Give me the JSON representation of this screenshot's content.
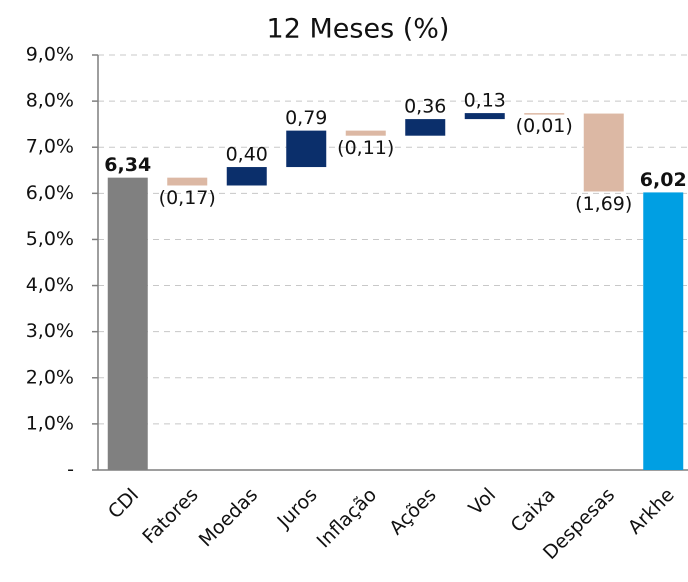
{
  "chart_data": {
    "type": "waterfall",
    "title": "12 Meses (%)",
    "categories": [
      "CDI",
      "Fatores",
      "Moedas",
      "Juros",
      "Inflação",
      "Ações",
      "Vol",
      "Caixa",
      "Despesas",
      "Arkhe"
    ],
    "values": [
      6.34,
      -0.17,
      0.4,
      0.79,
      -0.11,
      0.36,
      0.13,
      -0.01,
      -1.69,
      6.02
    ],
    "value_labels": [
      "6,34",
      "(0,17)",
      "0,40",
      "0,79",
      "(0,11)",
      "0,36",
      "0,13",
      "(0,01)",
      "(1,69)",
      "6,02"
    ],
    "is_total": [
      true,
      false,
      false,
      false,
      false,
      false,
      false,
      false,
      false,
      true
    ],
    "colors": [
      "#808080",
      "#dcb8a4",
      "#0b2f6b",
      "#0b2f6b",
      "#dcb8a4",
      "#0b2f6b",
      "#0b2f6b",
      "#dcb8a4",
      "#dcb8a4",
      "#009fe3"
    ],
    "ylim": [
      0,
      9
    ],
    "yticks": [
      {
        "value": 0,
        "label": "-"
      },
      {
        "value": 1,
        "label": "1,0%"
      },
      {
        "value": 2,
        "label": "2,0%"
      },
      {
        "value": 3,
        "label": "3,0%"
      },
      {
        "value": 4,
        "label": "4,0%"
      },
      {
        "value": 5,
        "label": "5,0%"
      },
      {
        "value": 6,
        "label": "6,0%"
      },
      {
        "value": 7,
        "label": "7,0%"
      },
      {
        "value": 8,
        "label": "8,0%"
      },
      {
        "value": 9,
        "label": "9,0%"
      }
    ],
    "grid": true
  }
}
